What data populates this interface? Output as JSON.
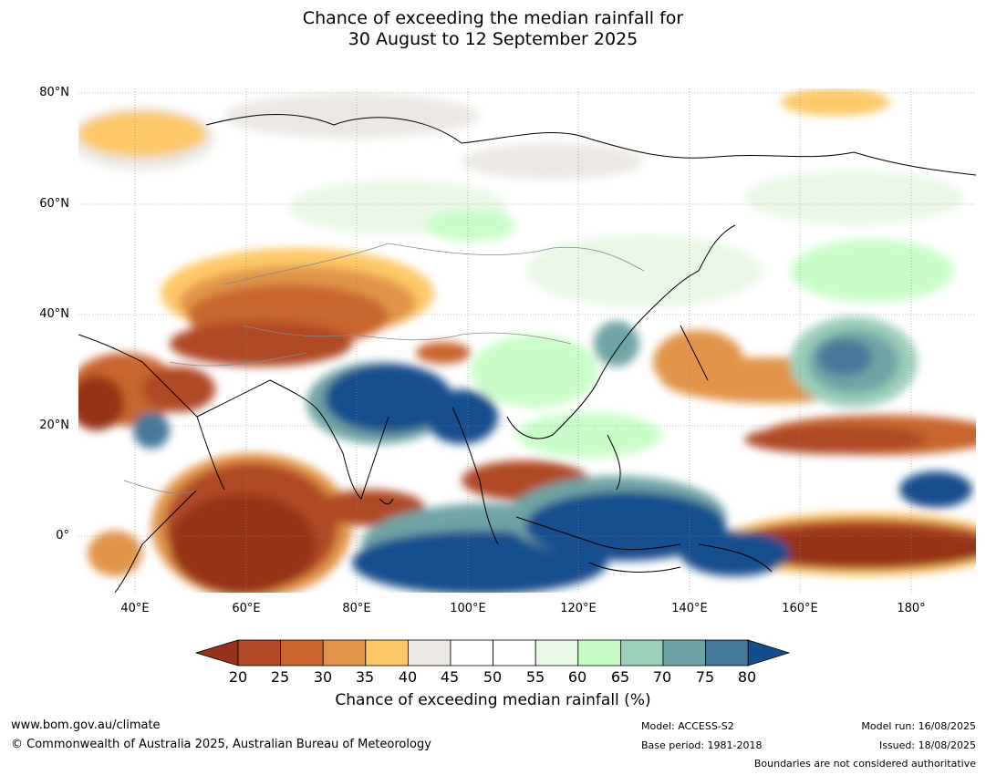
{
  "title": {
    "line1": "Chance of exceeding the median rainfall for",
    "line2": "30 August to 12 September 2025"
  },
  "axes": {
    "lat_labels": [
      "80°N",
      "60°N",
      "40°N",
      "20°N",
      "0°"
    ],
    "lon_labels": [
      "40°E",
      "60°E",
      "80°E",
      "100°E",
      "120°E",
      "140°E",
      "160°E",
      "180°"
    ]
  },
  "colorbar": {
    "title": "Chance of exceeding median rainfall (%)",
    "ticks": [
      "20",
      "25",
      "30",
      "35",
      "40",
      "45",
      "50",
      "55",
      "60",
      "65",
      "70",
      "75",
      "80"
    ],
    "colors": [
      "#963219",
      "#b04a26",
      "#c9652f",
      "#e1944a",
      "#fdc867",
      "#ebe8e3",
      "#ffffff",
      "#ffffff",
      "#e9f7e6",
      "#c8fdc8",
      "#9bcfba",
      "#6fa4a6",
      "#44789a",
      "#134d8c"
    ]
  },
  "footer": {
    "website": "www.bom.gov.au/climate",
    "copyright": "© Commonwealth of Australia 2025, Australian Bureau of Meteorology",
    "model": "Model: ACCESS-S2",
    "base_period": "Base period: 1981-2018",
    "model_run": "Model run: 16/08/2025",
    "issued": "Issued: 18/08/2025",
    "boundaries_note": "Boundaries are not considered authoritative"
  }
}
